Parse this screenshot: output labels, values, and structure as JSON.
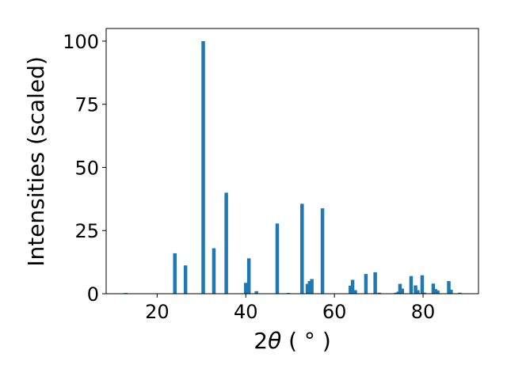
{
  "chart_data": {
    "type": "bar",
    "xlabel": "2θ (°)",
    "xlabel_parts": {
      "prefix": "2",
      "symbol": "θ",
      "unit": " ( ° )"
    },
    "ylabel": "Intensities (scaled)",
    "xlim": [
      8.5,
      92.5
    ],
    "ylim": [
      0,
      105
    ],
    "xticks": [
      20,
      40,
      60,
      80
    ],
    "yticks": [
      0,
      25,
      50,
      75,
      100
    ],
    "xtick_labels": [
      "20",
      "40",
      "60",
      "80"
    ],
    "ytick_labels": [
      "0",
      "25",
      "50",
      "75",
      "100"
    ],
    "bar_width": 0.8,
    "grid": false,
    "legend": "none",
    "color": "#1f77b4",
    "points": [
      {
        "x": 12.9,
        "y": 0.3
      },
      {
        "x": 24.0,
        "y": 16.0
      },
      {
        "x": 26.4,
        "y": 11.2
      },
      {
        "x": 30.4,
        "y": 100
      },
      {
        "x": 32.8,
        "y": 18.0
      },
      {
        "x": 35.6,
        "y": 40.0
      },
      {
        "x": 40.0,
        "y": 4.3
      },
      {
        "x": 40.7,
        "y": 14.0
      },
      {
        "x": 42.4,
        "y": 1.0
      },
      {
        "x": 47.1,
        "y": 27.8
      },
      {
        "x": 49.6,
        "y": 0.3
      },
      {
        "x": 52.7,
        "y": 35.6
      },
      {
        "x": 53.9,
        "y": 3.9
      },
      {
        "x": 54.4,
        "y": 5.0
      },
      {
        "x": 54.9,
        "y": 5.8
      },
      {
        "x": 57.3,
        "y": 33.8
      },
      {
        "x": 63.6,
        "y": 3.2
      },
      {
        "x": 64.1,
        "y": 5.5
      },
      {
        "x": 64.7,
        "y": 1.4
      },
      {
        "x": 67.1,
        "y": 7.8
      },
      {
        "x": 69.2,
        "y": 8.5
      },
      {
        "x": 70.1,
        "y": 0.4
      },
      {
        "x": 73.9,
        "y": 0.4
      },
      {
        "x": 74.4,
        "y": 0.8
      },
      {
        "x": 74.8,
        "y": 3.9
      },
      {
        "x": 75.3,
        "y": 2.0
      },
      {
        "x": 77.3,
        "y": 7.0
      },
      {
        "x": 78.3,
        "y": 3.3
      },
      {
        "x": 78.8,
        "y": 1.4
      },
      {
        "x": 79.8,
        "y": 7.3
      },
      {
        "x": 80.3,
        "y": 0.4
      },
      {
        "x": 82.3,
        "y": 4.0
      },
      {
        "x": 82.8,
        "y": 1.8
      },
      {
        "x": 83.3,
        "y": 1.3
      },
      {
        "x": 85.8,
        "y": 5.0
      },
      {
        "x": 86.3,
        "y": 1.6
      },
      {
        "x": 88.3,
        "y": 0.4
      }
    ]
  }
}
